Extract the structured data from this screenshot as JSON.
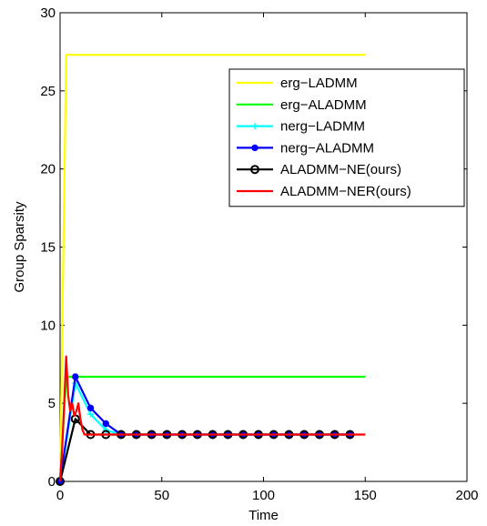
{
  "chart_data": {
    "type": "line",
    "title": "",
    "xlabel": "Time",
    "ylabel": "Group Sparsity",
    "xlim": [
      0,
      200
    ],
    "ylim": [
      0,
      30
    ],
    "xticks": [
      0,
      50,
      100,
      150,
      200
    ],
    "yticks": [
      0,
      5,
      10,
      15,
      20,
      25,
      30
    ],
    "grid": false,
    "legend_position": "top-right",
    "series": [
      {
        "name": "erg−LADMM",
        "color": "#ffff00",
        "marker": "none",
        "x": [
          0,
          3,
          150
        ],
        "y": [
          0,
          27.3,
          27.3
        ]
      },
      {
        "name": "erg−ALADMM",
        "color": "#00ff00",
        "marker": "none",
        "x": [
          0,
          3,
          150
        ],
        "y": [
          0,
          6.7,
          6.7
        ]
      },
      {
        "name": "nerg−LADMM",
        "color": "#00ffff",
        "marker": "plus",
        "x": [
          0,
          7.5,
          15,
          22.5,
          30,
          37.5,
          45,
          52.5,
          60,
          67.5,
          75,
          82.5,
          90,
          97.5,
          105,
          112.5,
          120,
          127.5,
          135,
          142.5
        ],
        "y": [
          0,
          6.3,
          4.3,
          3.3,
          3,
          3,
          3,
          3,
          3,
          3,
          3,
          3,
          3,
          3,
          3,
          3,
          3,
          3,
          3,
          3
        ]
      },
      {
        "name": "nerg−ALADMM",
        "color": "#0000ff",
        "marker": "dot",
        "x": [
          0,
          7.5,
          15,
          22.5,
          30,
          37.5,
          45,
          52.5,
          60,
          67.5,
          75,
          82.5,
          90,
          97.5,
          105,
          112.5,
          120,
          127.5,
          135,
          142.5
        ],
        "y": [
          0,
          6.7,
          4.7,
          3.7,
          3,
          3,
          3,
          3,
          3,
          3,
          3,
          3,
          3,
          3,
          3,
          3,
          3,
          3,
          3,
          3
        ]
      },
      {
        "name": "ALADMM−NE(ours)",
        "color": "#000000",
        "marker": "circle",
        "x": [
          0,
          7.5,
          15,
          22.5,
          30,
          37.5,
          45,
          52.5,
          60,
          67.5,
          75,
          82.5,
          90,
          97.5,
          105,
          112.5,
          120,
          127.5,
          135,
          142.5
        ],
        "y": [
          0,
          4,
          3,
          3,
          3,
          3,
          3,
          3,
          3,
          3,
          3,
          3,
          3,
          3,
          3,
          3,
          3,
          3,
          3,
          3
        ]
      },
      {
        "name": "ALADMM−NER(ours)",
        "color": "#ff0000",
        "marker": "none",
        "x": [
          0,
          1,
          2,
          3,
          4,
          5,
          6,
          7,
          8,
          9,
          10,
          11,
          12,
          13,
          14,
          15,
          150
        ],
        "y": [
          0,
          2,
          5,
          8,
          5.5,
          4.5,
          5,
          4.2,
          4.5,
          5,
          4,
          3.3,
          3,
          3,
          3,
          3,
          3
        ]
      }
    ]
  }
}
